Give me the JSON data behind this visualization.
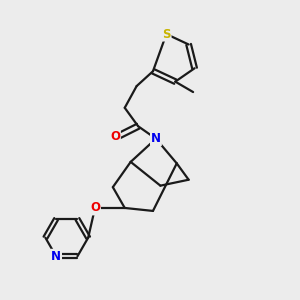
{
  "background_color": "#ececec",
  "atom_colors": {
    "S": "#c8b400",
    "N": "#0000ee",
    "O": "#ee0000",
    "C": "#1a1a1a"
  },
  "line_color": "#1a1a1a",
  "line_width": 1.6,
  "fig_size": [
    3.0,
    3.0
  ],
  "dpi": 100
}
